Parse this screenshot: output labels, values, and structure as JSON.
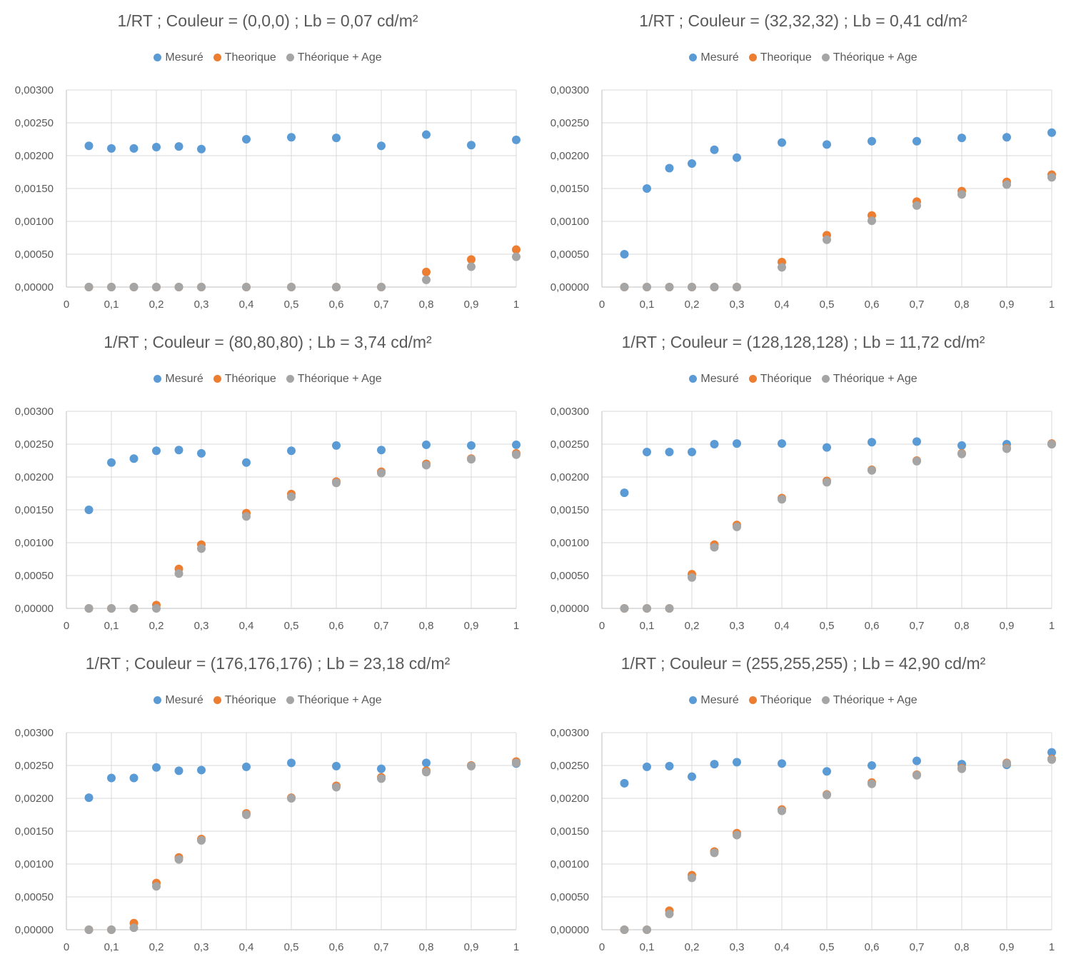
{
  "chart_data": [
    {
      "type": "scatter",
      "title": "1/RT ; Couleur = (0,0,0) ; Lb = 0,07 cd/m²",
      "xlim": [
        0,
        1
      ],
      "ylim": [
        0,
        0.003
      ],
      "x_ticks": [
        "0",
        "0,1",
        "0,2",
        "0,3",
        "0,4",
        "0,5",
        "0,6",
        "0,7",
        "0,8",
        "0,9",
        "1"
      ],
      "y_ticks": [
        "0,00000",
        "0,00050",
        "0,00100",
        "0,00150",
        "0,00200",
        "0,00250",
        "0,00300"
      ],
      "grid": true,
      "legend_position": "top",
      "x": [
        0.05,
        0.1,
        0.15,
        0.2,
        0.25,
        0.3,
        0.4,
        0.5,
        0.6,
        0.7,
        0.8,
        0.9,
        1.0
      ],
      "series": [
        {
          "name": "Mesuré",
          "color": "#5B9BD5",
          "values": [
            0.00215,
            0.00211,
            0.00211,
            0.00213,
            0.00214,
            0.0021,
            0.00225,
            0.00228,
            0.00227,
            0.00215,
            0.00232,
            0.00216,
            0.00224
          ]
        },
        {
          "name": "Theorique",
          "color": "#ED7D31",
          "values": [
            0,
            0,
            0,
            0,
            0,
            0,
            0,
            0,
            0,
            0,
            0.00023,
            0.00042,
            0.00057
          ]
        },
        {
          "name": "Théorique + Age",
          "color": "#A5A5A5",
          "values": [
            0,
            0,
            0,
            0,
            0,
            0,
            0,
            0,
            0,
            0,
            0.00011,
            0.00031,
            0.00046
          ]
        }
      ]
    },
    {
      "type": "scatter",
      "title": "1/RT ; Couleur = (32,32,32) ; Lb = 0,41 cd/m²",
      "xlim": [
        0,
        1
      ],
      "ylim": [
        0,
        0.003
      ],
      "x_ticks": [
        "0",
        "0,1",
        "0,2",
        "0,3",
        "0,4",
        "0,5",
        "0,6",
        "0,7",
        "0,8",
        "0,9",
        "1"
      ],
      "y_ticks": [
        "0,00000",
        "0,00050",
        "0,00100",
        "0,00150",
        "0,00200",
        "0,00250",
        "0,00300"
      ],
      "grid": true,
      "legend_position": "top",
      "x": [
        0.05,
        0.1,
        0.15,
        0.2,
        0.25,
        0.3,
        0.4,
        0.5,
        0.6,
        0.7,
        0.8,
        0.9,
        1.0
      ],
      "series": [
        {
          "name": "Mesuré",
          "color": "#5B9BD5",
          "values": [
            0.0005,
            0.0015,
            0.00181,
            0.00188,
            0.00209,
            0.00197,
            0.0022,
            0.00217,
            0.00222,
            0.00222,
            0.00227,
            0.00228,
            0.00235
          ]
        },
        {
          "name": "Theorique",
          "color": "#ED7D31",
          "values": [
            0,
            0,
            0,
            0,
            0,
            0,
            0.00038,
            0.00079,
            0.00109,
            0.0013,
            0.00146,
            0.0016,
            0.00171
          ]
        },
        {
          "name": "Théorique + Age",
          "color": "#A5A5A5",
          "values": [
            0,
            0,
            0,
            0,
            0,
            0,
            0.0003,
            0.00072,
            0.00101,
            0.00124,
            0.00141,
            0.00156,
            0.00167
          ]
        }
      ]
    },
    {
      "type": "scatter",
      "title": "1/RT ; Couleur = (80,80,80) ; Lb = 3,74 cd/m²",
      "xlim": [
        0,
        1
      ],
      "ylim": [
        0,
        0.003
      ],
      "x_ticks": [
        "0",
        "0,1",
        "0,2",
        "0,3",
        "0,4",
        "0,5",
        "0,6",
        "0,7",
        "0,8",
        "0,9",
        "1"
      ],
      "y_ticks": [
        "0,00000",
        "0,00050",
        "0,00100",
        "0,00150",
        "0,00200",
        "0,00250",
        "0,00300"
      ],
      "grid": true,
      "legend_position": "top",
      "x": [
        0.05,
        0.1,
        0.15,
        0.2,
        0.25,
        0.3,
        0.4,
        0.5,
        0.6,
        0.7,
        0.8,
        0.9,
        1.0
      ],
      "series": [
        {
          "name": "Mesuré",
          "color": "#5B9BD5",
          "values": [
            0.0015,
            0.00222,
            0.00228,
            0.0024,
            0.00241,
            0.00236,
            0.00222,
            0.0024,
            0.00248,
            0.00241,
            0.00249,
            0.00248,
            0.00249
          ]
        },
        {
          "name": "Théorique",
          "color": "#ED7D31",
          "values": [
            0,
            0,
            0,
            5e-05,
            0.0006,
            0.00097,
            0.00145,
            0.00174,
            0.00193,
            0.00208,
            0.0022,
            0.00228,
            0.00236
          ]
        },
        {
          "name": "Théorique + Age",
          "color": "#A5A5A5",
          "values": [
            0,
            0,
            0,
            0,
            0.00053,
            0.00091,
            0.0014,
            0.0017,
            0.00191,
            0.00206,
            0.00218,
            0.00227,
            0.00234
          ]
        }
      ]
    },
    {
      "type": "scatter",
      "title": "1/RT ; Couleur = (128,128,128) ; Lb = 11,72 cd/m²",
      "xlim": [
        0,
        1
      ],
      "ylim": [
        0,
        0.003
      ],
      "x_ticks": [
        "0",
        "0,1",
        "0,2",
        "0,3",
        "0,4",
        "0,5",
        "0,6",
        "0,7",
        "0,8",
        "0,9",
        "1"
      ],
      "y_ticks": [
        "0,00000",
        "0,00050",
        "0,00100",
        "0,00150",
        "0,00200",
        "0,00250",
        "0,00300"
      ],
      "grid": true,
      "legend_position": "top",
      "x": [
        0.05,
        0.1,
        0.15,
        0.2,
        0.25,
        0.3,
        0.4,
        0.5,
        0.6,
        0.7,
        0.8,
        0.9,
        1.0
      ],
      "series": [
        {
          "name": "Mesuré",
          "color": "#5B9BD5",
          "values": [
            0.00176,
            0.00238,
            0.00238,
            0.00238,
            0.0025,
            0.00251,
            0.00251,
            0.00245,
            0.00253,
            0.00254,
            0.00248,
            0.0025,
            0.0025
          ]
        },
        {
          "name": "Théorique",
          "color": "#ED7D31",
          "values": [
            0,
            0,
            0,
            0.00052,
            0.00097,
            0.00127,
            0.00168,
            0.00194,
            0.00211,
            0.00225,
            0.00236,
            0.00244,
            0.00251
          ]
        },
        {
          "name": "Théorique + Age",
          "color": "#A5A5A5",
          "values": [
            0,
            0,
            0,
            0.00047,
            0.00093,
            0.00124,
            0.00166,
            0.00192,
            0.0021,
            0.00224,
            0.00235,
            0.00243,
            0.0025
          ]
        }
      ]
    },
    {
      "type": "scatter",
      "title": "1/RT ; Couleur = (176,176,176) ; Lb = 23,18 cd/m²",
      "xlim": [
        0,
        1
      ],
      "ylim": [
        0,
        0.003
      ],
      "x_ticks": [
        "0",
        "0,1",
        "0,2",
        "0,3",
        "0,4",
        "0,5",
        "0,6",
        "0,7",
        "0,8",
        "0,9",
        "1"
      ],
      "y_ticks": [
        "0,00000",
        "0,00050",
        "0,00100",
        "0,00150",
        "0,00200",
        "0,00250",
        "0,00300"
      ],
      "grid": true,
      "legend_position": "top",
      "x": [
        0.05,
        0.1,
        0.15,
        0.2,
        0.25,
        0.3,
        0.4,
        0.5,
        0.6,
        0.7,
        0.8,
        0.9,
        1.0
      ],
      "series": [
        {
          "name": "Mesuré",
          "color": "#5B9BD5",
          "values": [
            0.00201,
            0.00231,
            0.00231,
            0.00247,
            0.00242,
            0.00243,
            0.00248,
            0.00254,
            0.00249,
            0.00245,
            0.00254,
            0.0025,
            0.00253
          ]
        },
        {
          "name": "Théorique",
          "color": "#ED7D31",
          "values": [
            0,
            0,
            0.0001,
            0.00071,
            0.0011,
            0.00138,
            0.00177,
            0.00201,
            0.00219,
            0.00232,
            0.00242,
            0.0025,
            0.00256
          ]
        },
        {
          "name": "Théorique + Age",
          "color": "#A5A5A5",
          "values": [
            0,
            0,
            3e-05,
            0.00066,
            0.00107,
            0.00136,
            0.00175,
            0.002,
            0.00217,
            0.0023,
            0.0024,
            0.00249,
            0.00254
          ]
        }
      ]
    },
    {
      "type": "scatter",
      "title": "1/RT ; Couleur = (255,255,255) ; Lb = 42,90 cd/m²",
      "xlim": [
        0,
        1
      ],
      "ylim": [
        0,
        0.003
      ],
      "x_ticks": [
        "0",
        "0,1",
        "0,2",
        "0,3",
        "0,4",
        "0,5",
        "0,6",
        "0,7",
        "0,8",
        "0,9",
        "1"
      ],
      "y_ticks": [
        "0,00000",
        "0,00050",
        "0,00100",
        "0,00150",
        "0,00200",
        "0,00250",
        "0,00300"
      ],
      "grid": true,
      "legend_position": "top",
      "x": [
        0.05,
        0.1,
        0.15,
        0.2,
        0.25,
        0.3,
        0.4,
        0.5,
        0.6,
        0.7,
        0.8,
        0.9,
        1.0
      ],
      "series": [
        {
          "name": "Mesuré",
          "color": "#5B9BD5",
          "values": [
            0.00223,
            0.00248,
            0.00249,
            0.00233,
            0.00252,
            0.00255,
            0.00253,
            0.00241,
            0.0025,
            0.00257,
            0.00252,
            0.00251,
            0.0027
          ]
        },
        {
          "name": "Théorique",
          "color": "#ED7D31",
          "values": [
            0,
            0,
            0.00029,
            0.00083,
            0.00119,
            0.00147,
            0.00183,
            0.00206,
            0.00224,
            0.00236,
            0.00246,
            0.00254,
            0.0026
          ]
        },
        {
          "name": "Théorique + Age",
          "color": "#A5A5A5",
          "values": [
            0,
            0,
            0.00024,
            0.00079,
            0.00117,
            0.00144,
            0.00181,
            0.00205,
            0.00222,
            0.00235,
            0.00245,
            0.00253,
            0.00259
          ]
        }
      ]
    }
  ]
}
